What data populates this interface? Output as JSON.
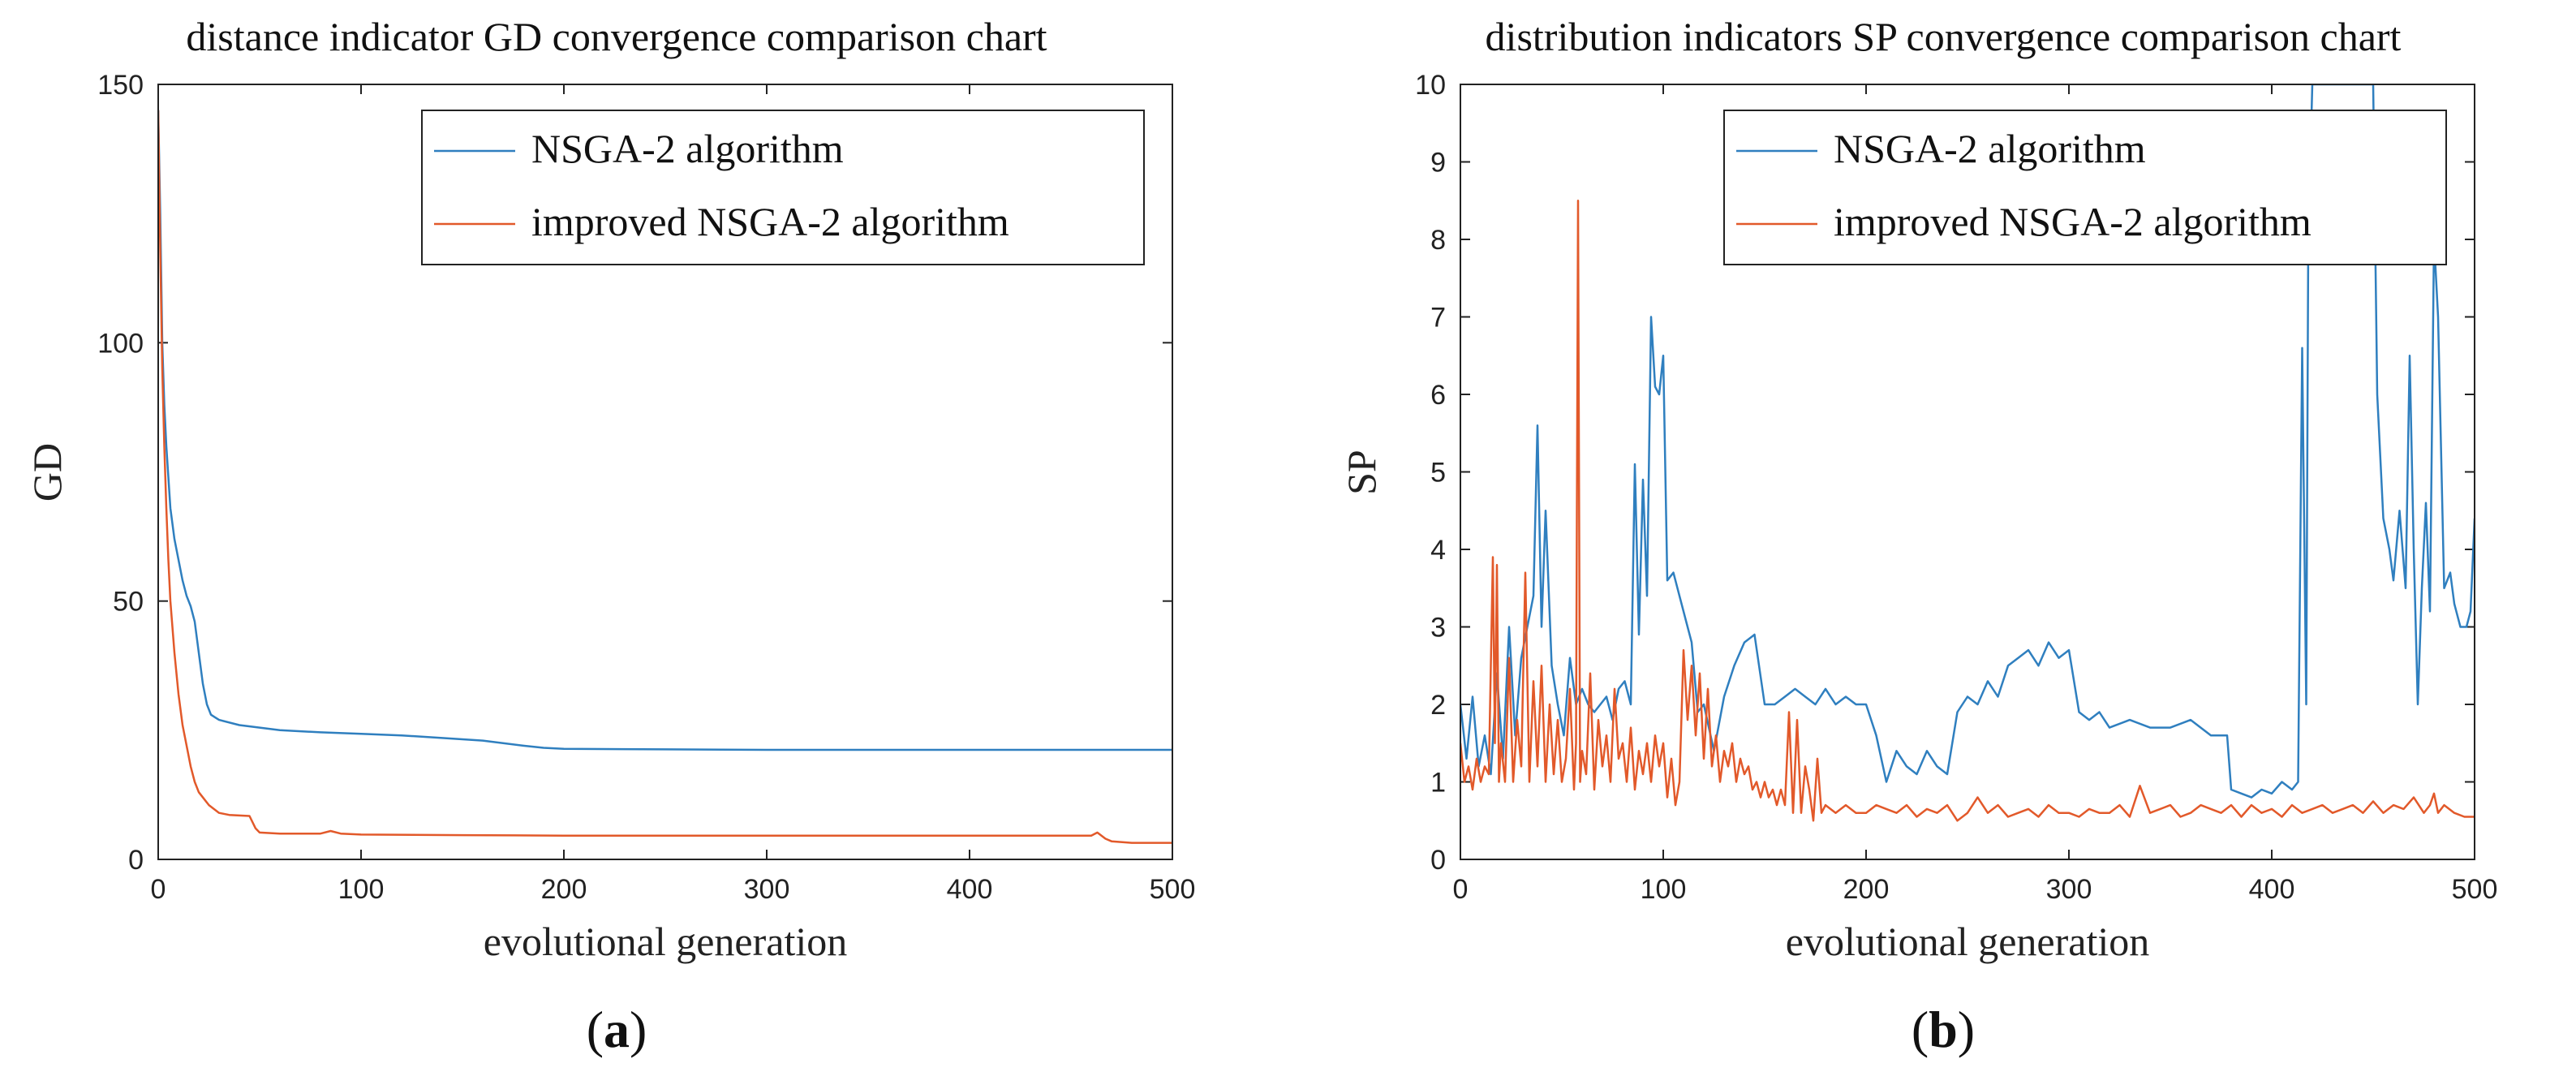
{
  "colors": {
    "nsga2": "#2f7fbf",
    "improved": "#e2592a",
    "axis": "#222222"
  },
  "chart_data": [
    {
      "type": "line",
      "panel_label": {
        "open": "(",
        "letter": "a",
        "close": ")"
      },
      "title": "distance indicator GD convergence comparison chart",
      "xlabel": "evolutional generation",
      "ylabel": "GD",
      "xlim": [
        0,
        500
      ],
      "ylim": [
        0,
        150
      ],
      "xticks": [
        0,
        100,
        200,
        300,
        400,
        500
      ],
      "yticks": [
        0,
        50,
        100,
        150
      ],
      "legend": "top-right",
      "series": [
        {
          "name": "NSGA-2 algorithm",
          "color": "#2f7fbf",
          "x": [
            0,
            1,
            2,
            3,
            4,
            5,
            6,
            8,
            10,
            12,
            14,
            16,
            18,
            20,
            22,
            24,
            26,
            28,
            30,
            40,
            60,
            80,
            100,
            120,
            140,
            160,
            180,
            190,
            200,
            250,
            300,
            350,
            400,
            450,
            500
          ],
          "y": [
            145,
            125,
            100,
            88,
            80,
            74,
            68,
            62,
            58,
            54,
            51,
            49,
            46,
            40,
            34,
            30,
            28,
            27.5,
            27,
            26,
            25,
            24.6,
            24.3,
            24,
            23.5,
            23,
            22,
            21.6,
            21.4,
            21.3,
            21.2,
            21.2,
            21.2,
            21.2,
            21.2
          ]
        },
        {
          "name": "improved NSGA-2 algorithm",
          "color": "#e2592a",
          "x": [
            0,
            1,
            2,
            3,
            4,
            5,
            6,
            8,
            10,
            12,
            14,
            16,
            18,
            20,
            25,
            30,
            35,
            40,
            45,
            48,
            50,
            60,
            80,
            85,
            90,
            100,
            150,
            200,
            300,
            400,
            460,
            463,
            467,
            470,
            480,
            500
          ],
          "y": [
            145,
            118,
            95,
            80,
            68,
            58,
            50,
            40,
            32,
            26,
            22,
            18,
            15,
            13,
            10.5,
            9,
            8.6,
            8.5,
            8.4,
            6,
            5.2,
            5,
            5,
            5.5,
            5,
            4.8,
            4.7,
            4.6,
            4.6,
            4.6,
            4.6,
            5.2,
            4,
            3.5,
            3.2,
            3.2
          ]
        }
      ]
    },
    {
      "type": "line",
      "panel_label": {
        "open": "(",
        "letter": "b",
        "close": ")"
      },
      "title": "distribution indicators SP convergence comparison chart",
      "xlabel": "evolutional generation",
      "ylabel": "SP",
      "xlim": [
        0,
        500
      ],
      "ylim": [
        0,
        10
      ],
      "xticks": [
        0,
        100,
        200,
        300,
        400,
        500
      ],
      "yticks": [
        0,
        1,
        2,
        3,
        4,
        5,
        6,
        7,
        8,
        9,
        10
      ],
      "legend": "top-right",
      "series": [
        {
          "name": "NSGA-2 algorithm",
          "color": "#2f7fbf",
          "x": [
            0,
            3,
            6,
            9,
            12,
            15,
            18,
            21,
            24,
            27,
            30,
            33,
            36,
            38,
            40,
            42,
            45,
            48,
            51,
            54,
            57,
            60,
            63,
            66,
            69,
            72,
            75,
            78,
            81,
            84,
            86,
            88,
            90,
            92,
            94,
            96,
            98,
            100,
            102,
            105,
            108,
            111,
            114,
            117,
            120,
            125,
            130,
            135,
            140,
            145,
            150,
            155,
            160,
            165,
            170,
            175,
            180,
            185,
            190,
            195,
            200,
            205,
            210,
            215,
            220,
            225,
            230,
            235,
            240,
            245,
            250,
            255,
            260,
            265,
            270,
            275,
            280,
            285,
            290,
            295,
            300,
            305,
            310,
            315,
            320,
            330,
            340,
            350,
            360,
            370,
            378,
            380,
            385,
            390,
            395,
            400,
            405,
            410,
            413,
            415,
            417,
            418,
            420,
            425,
            430,
            435,
            440,
            445,
            450,
            452,
            455,
            458,
            460,
            463,
            466,
            468,
            470,
            472,
            474,
            476,
            478,
            480,
            482,
            485,
            488,
            490,
            493,
            496,
            498,
            500
          ],
          "y": [
            2.0,
            1.3,
            2.1,
            1.2,
            1.6,
            1.1,
            2.4,
            1.3,
            3.0,
            1.6,
            2.6,
            3.0,
            3.4,
            5.6,
            3.0,
            4.5,
            2.5,
            2.0,
            1.6,
            2.6,
            2.0,
            2.2,
            2.0,
            1.9,
            2.0,
            2.1,
            1.8,
            2.2,
            2.3,
            2.0,
            5.1,
            2.9,
            4.9,
            3.4,
            7.0,
            6.1,
            6.0,
            6.5,
            3.6,
            3.7,
            3.4,
            3.1,
            2.8,
            1.9,
            2.0,
            1.4,
            2.1,
            2.5,
            2.8,
            2.9,
            2.0,
            2.0,
            2.1,
            2.2,
            2.1,
            2.0,
            2.2,
            2.0,
            2.1,
            2.0,
            2.0,
            1.6,
            1.0,
            1.4,
            1.2,
            1.1,
            1.4,
            1.2,
            1.1,
            1.9,
            2.1,
            2.0,
            2.3,
            2.1,
            2.5,
            2.6,
            2.7,
            2.5,
            2.8,
            2.6,
            2.7,
            1.9,
            1.8,
            1.9,
            1.7,
            1.8,
            1.7,
            1.7,
            1.8,
            1.6,
            1.6,
            0.9,
            0.85,
            0.8,
            0.9,
            0.85,
            1.0,
            0.9,
            1.0,
            6.6,
            2.0,
            8.0,
            10.0,
            10.0,
            10.0,
            10.0,
            10.0,
            10.0,
            10.0,
            6.0,
            4.4,
            4.0,
            3.6,
            4.5,
            3.5,
            6.5,
            4.0,
            2.0,
            3.5,
            4.6,
            3.2,
            8.0,
            7.0,
            3.5,
            3.7,
            3.3,
            3.0,
            3.0,
            3.2,
            4.4
          ]
        },
        {
          "name": "improved NSGA-2 algorithm",
          "color": "#e2592a",
          "x": [
            0,
            2,
            4,
            6,
            8,
            10,
            12,
            14,
            16,
            17,
            18,
            19,
            20,
            22,
            24,
            26,
            28,
            30,
            32,
            34,
            36,
            38,
            40,
            42,
            44,
            46,
            48,
            50,
            52,
            54,
            56,
            57,
            58,
            59,
            60,
            62,
            64,
            66,
            68,
            70,
            72,
            74,
            76,
            78,
            80,
            82,
            84,
            86,
            88,
            90,
            92,
            94,
            96,
            98,
            100,
            102,
            104,
            106,
            108,
            110,
            112,
            114,
            116,
            118,
            120,
            122,
            124,
            126,
            128,
            130,
            132,
            134,
            136,
            138,
            140,
            142,
            144,
            146,
            148,
            150,
            152,
            154,
            156,
            158,
            160,
            162,
            164,
            166,
            168,
            170,
            172,
            174,
            176,
            178,
            180,
            185,
            190,
            195,
            200,
            205,
            210,
            215,
            220,
            225,
            230,
            235,
            240,
            245,
            250,
            255,
            260,
            265,
            270,
            275,
            280,
            285,
            290,
            295,
            300,
            305,
            310,
            315,
            320,
            325,
            330,
            335,
            340,
            345,
            350,
            355,
            360,
            365,
            370,
            375,
            380,
            385,
            390,
            395,
            400,
            405,
            410,
            415,
            420,
            425,
            430,
            435,
            440,
            445,
            450,
            455,
            460,
            465,
            470,
            475,
            478,
            480,
            482,
            485,
            490,
            495,
            500
          ],
          "y": [
            1.5,
            1.0,
            1.2,
            0.9,
            1.3,
            1.0,
            1.2,
            1.1,
            3.9,
            1.5,
            3.8,
            1.0,
            1.5,
            1.0,
            2.6,
            1.0,
            1.8,
            1.2,
            3.7,
            1.0,
            2.3,
            1.2,
            2.5,
            1.0,
            2.0,
            1.1,
            1.8,
            1.0,
            1.3,
            2.2,
            0.9,
            1.5,
            8.5,
            1.0,
            1.4,
            1.1,
            2.4,
            0.9,
            1.8,
            1.2,
            1.6,
            1.0,
            2.2,
            1.3,
            1.5,
            1.0,
            1.7,
            0.9,
            1.4,
            1.1,
            1.5,
            1.0,
            1.6,
            1.2,
            1.5,
            0.8,
            1.3,
            0.7,
            1.0,
            2.7,
            1.8,
            2.5,
            1.6,
            2.4,
            1.3,
            2.2,
            1.2,
            1.6,
            1.0,
            1.4,
            1.2,
            1.5,
            1.0,
            1.3,
            1.1,
            1.2,
            0.9,
            1.0,
            0.8,
            1.0,
            0.8,
            0.9,
            0.7,
            0.9,
            0.7,
            1.9,
            0.6,
            1.8,
            0.6,
            1.2,
            0.9,
            0.5,
            1.3,
            0.6,
            0.7,
            0.6,
            0.7,
            0.6,
            0.6,
            0.7,
            0.65,
            0.6,
            0.7,
            0.55,
            0.65,
            0.6,
            0.7,
            0.5,
            0.6,
            0.8,
            0.6,
            0.7,
            0.55,
            0.6,
            0.65,
            0.55,
            0.7,
            0.6,
            0.6,
            0.55,
            0.65,
            0.6,
            0.6,
            0.7,
            0.55,
            0.95,
            0.6,
            0.65,
            0.7,
            0.55,
            0.6,
            0.7,
            0.65,
            0.6,
            0.7,
            0.55,
            0.7,
            0.6,
            0.65,
            0.55,
            0.7,
            0.6,
            0.65,
            0.7,
            0.6,
            0.65,
            0.7,
            0.6,
            0.75,
            0.6,
            0.7,
            0.65,
            0.8,
            0.6,
            0.7,
            0.85,
            0.6,
            0.7,
            0.6,
            0.55,
            0.55
          ]
        }
      ]
    }
  ]
}
